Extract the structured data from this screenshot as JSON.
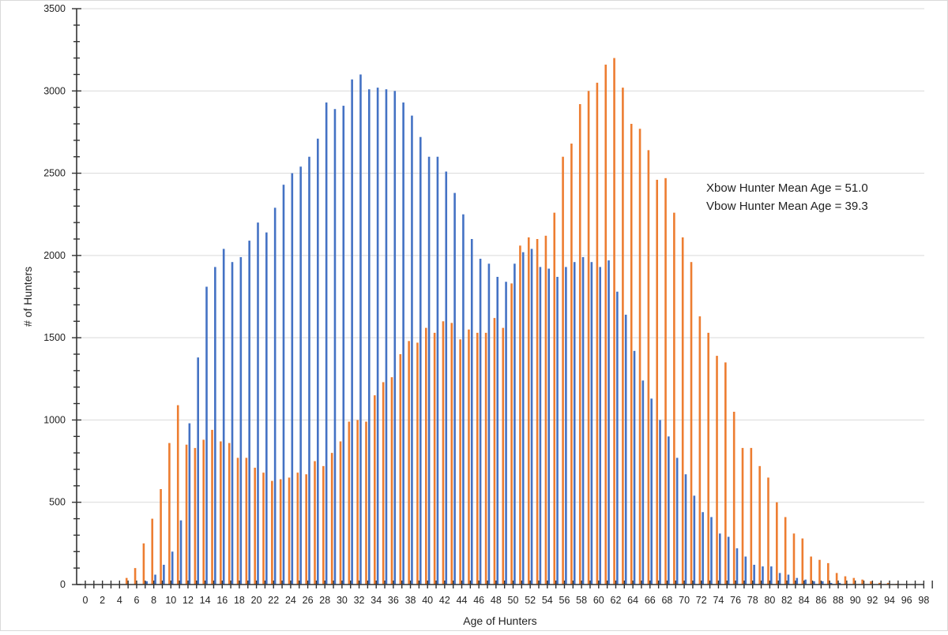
{
  "chart_data": {
    "type": "bar",
    "title": "",
    "xlabel": "Age of Hunters",
    "ylabel": "# of Hunters",
    "ylim": [
      0,
      3500
    ],
    "yticks": [
      0,
      500,
      1000,
      1500,
      2000,
      2500,
      3000,
      3500
    ],
    "xlim": [
      0,
      99
    ],
    "xticks": [
      0,
      2,
      4,
      6,
      8,
      10,
      12,
      14,
      16,
      18,
      20,
      22,
      24,
      26,
      28,
      30,
      32,
      34,
      36,
      38,
      40,
      42,
      44,
      46,
      48,
      50,
      52,
      54,
      56,
      58,
      60,
      62,
      64,
      66,
      68,
      70,
      72,
      74,
      76,
      78,
      80,
      82,
      84,
      86,
      88,
      90,
      92,
      94,
      96,
      98
    ],
    "grid": true,
    "legend": "none",
    "x": [
      0,
      1,
      2,
      3,
      4,
      5,
      6,
      7,
      8,
      9,
      10,
      11,
      12,
      13,
      14,
      15,
      16,
      17,
      18,
      19,
      20,
      21,
      22,
      23,
      24,
      25,
      26,
      27,
      28,
      29,
      30,
      31,
      32,
      33,
      34,
      35,
      36,
      37,
      38,
      39,
      40,
      41,
      42,
      43,
      44,
      45,
      46,
      47,
      48,
      49,
      50,
      51,
      52,
      53,
      54,
      55,
      56,
      57,
      58,
      59,
      60,
      61,
      62,
      63,
      64,
      65,
      66,
      67,
      68,
      69,
      70,
      71,
      72,
      73,
      74,
      75,
      76,
      77,
      78,
      79,
      80,
      81,
      82,
      83,
      84,
      85,
      86,
      87,
      88,
      89,
      90,
      91,
      92,
      93,
      94,
      95,
      96,
      97,
      98,
      99
    ],
    "series": [
      {
        "color": "#4472c4",
        "values": [
          0,
          0,
          0,
          0,
          0,
          0,
          0,
          20,
          60,
          120,
          200,
          390,
          980,
          1380,
          1810,
          1930,
          2040,
          1960,
          1990,
          2090,
          2200,
          2140,
          2290,
          2430,
          2500,
          2540,
          2600,
          2710,
          2930,
          2890,
          2910,
          3070,
          3100,
          3010,
          3020,
          3010,
          3000,
          2930,
          2850,
          2720,
          2600,
          2600,
          2510,
          2380,
          2250,
          2100,
          1980,
          1950,
          1870,
          1840,
          1950,
          2020,
          2040,
          1930,
          1920,
          1870,
          1930,
          1960,
          1990,
          1960,
          1930,
          1970,
          1780,
          1640,
          1420,
          1240,
          1130,
          1000,
          900,
          770,
          670,
          540,
          440,
          410,
          310,
          290,
          220,
          170,
          120,
          110,
          110,
          70,
          60,
          40,
          30,
          20,
          20,
          10,
          10,
          0,
          0,
          0,
          0,
          0,
          0,
          0,
          0,
          0,
          0,
          0
        ]
      },
      {
        "color": "#ed7d31",
        "values": [
          0,
          0,
          0,
          0,
          0,
          40,
          100,
          250,
          400,
          580,
          860,
          1090,
          850,
          830,
          880,
          940,
          870,
          860,
          770,
          770,
          710,
          680,
          630,
          640,
          650,
          680,
          670,
          750,
          720,
          800,
          870,
          990,
          1000,
          990,
          1150,
          1230,
          1260,
          1400,
          1480,
          1470,
          1560,
          1530,
          1600,
          1590,
          1490,
          1550,
          1530,
          1530,
          1620,
          1560,
          1830,
          2060,
          2110,
          2100,
          2120,
          2260,
          2600,
          2680,
          2920,
          3000,
          3050,
          3160,
          3200,
          3020,
          2800,
          2770,
          2640,
          2460,
          2470,
          2260,
          2110,
          1960,
          1630,
          1530,
          1390,
          1350,
          1050,
          830,
          830,
          720,
          650,
          500,
          410,
          310,
          280,
          170,
          150,
          130,
          70,
          50,
          40,
          30,
          20,
          10,
          10,
          5,
          0,
          0,
          0,
          0
        ]
      }
    ],
    "annotations": [
      "Xbow Hunter Mean Age = 51.0",
      "Vbow Hunter Mean Age = 39.3"
    ]
  }
}
